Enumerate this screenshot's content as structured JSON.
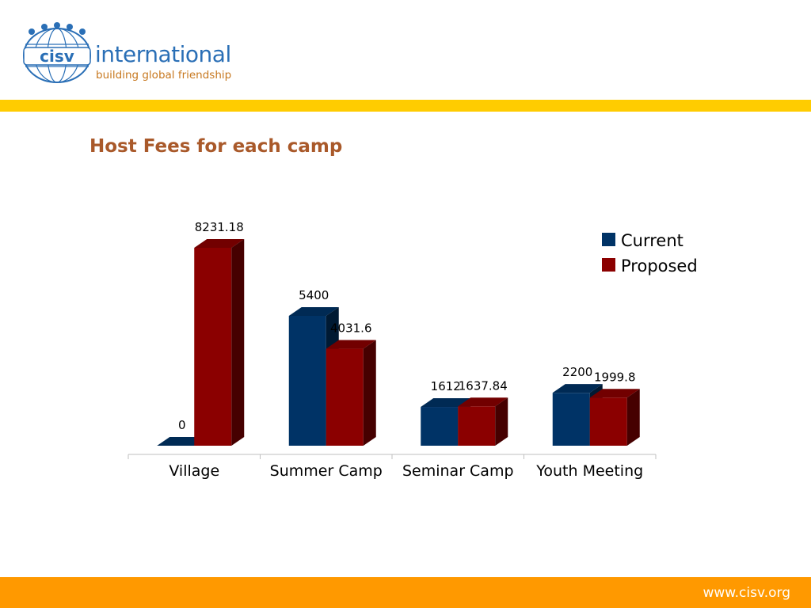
{
  "header": {
    "logo_wordmark": "cisv",
    "logo_name": "international",
    "logo_tagline": "building global friendship"
  },
  "footer": {
    "url": "www.cisv.org"
  },
  "colors": {
    "current": "#003366",
    "proposed": "#8b0000",
    "stripe": "#ffcc00",
    "footer_bar": "#ff9900",
    "title": "#a9592a"
  },
  "chart_data": {
    "type": "bar",
    "title": "Host Fees for each camp",
    "categories": [
      "Village",
      "Summer Camp",
      "Seminar Camp",
      "Youth Meeting"
    ],
    "series": [
      {
        "name": "Current",
        "values": [
          0,
          5400,
          1612,
          2200
        ],
        "labels": [
          "0",
          "5400",
          "1612",
          "2200"
        ]
      },
      {
        "name": "Proposed",
        "values": [
          8231.18,
          4031.6,
          1637.84,
          1999.8
        ],
        "labels": [
          "8231.18",
          "4031.6",
          "1637.84",
          "1999.8"
        ]
      }
    ],
    "ylim": [
      0,
      8231.18
    ],
    "grid": false,
    "legend": "top-right",
    "style": "3d-clustered-column"
  }
}
